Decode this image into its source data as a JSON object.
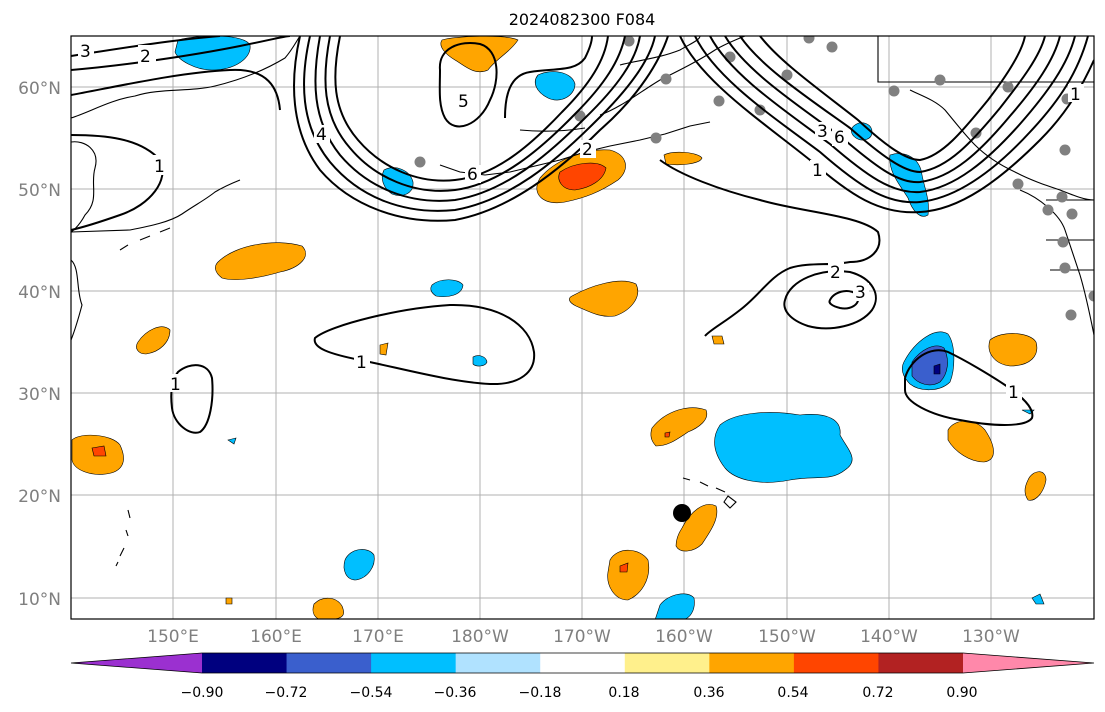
{
  "title": "2024082300 F084",
  "lat_labels": [
    "60°N",
    "50°N",
    "40°N",
    "30°N",
    "20°N",
    "10°N"
  ],
  "lon_labels": [
    "150°E",
    "160°E",
    "170°E",
    "180°W",
    "170°W",
    "160°W",
    "150°W",
    "140°W",
    "130°W"
  ],
  "contour_labels": [
    "1",
    "2",
    "3",
    "4",
    "5",
    "6"
  ],
  "colorbar": {
    "ticks": [
      "−0.90",
      "−0.72",
      "−0.54",
      "−0.36",
      "−0.18",
      "0.18",
      "0.36",
      "0.54",
      "0.72",
      "0.90"
    ],
    "colors": [
      "#9b30d0",
      "#00007f",
      "#3a5fcd",
      "#00bfff",
      "#b0e2ff",
      "#ffffff",
      "#fff08c",
      "#ffa500",
      "#ff4500",
      "#b22222",
      "#ff88aa"
    ]
  },
  "map": {
    "projection": "equirectangular",
    "lon_range": [
      "140°E",
      "120°W"
    ],
    "lat_range": [
      "8°N",
      "65°N"
    ],
    "grid": true,
    "marker": "black dot near 18°N 160°W"
  }
}
